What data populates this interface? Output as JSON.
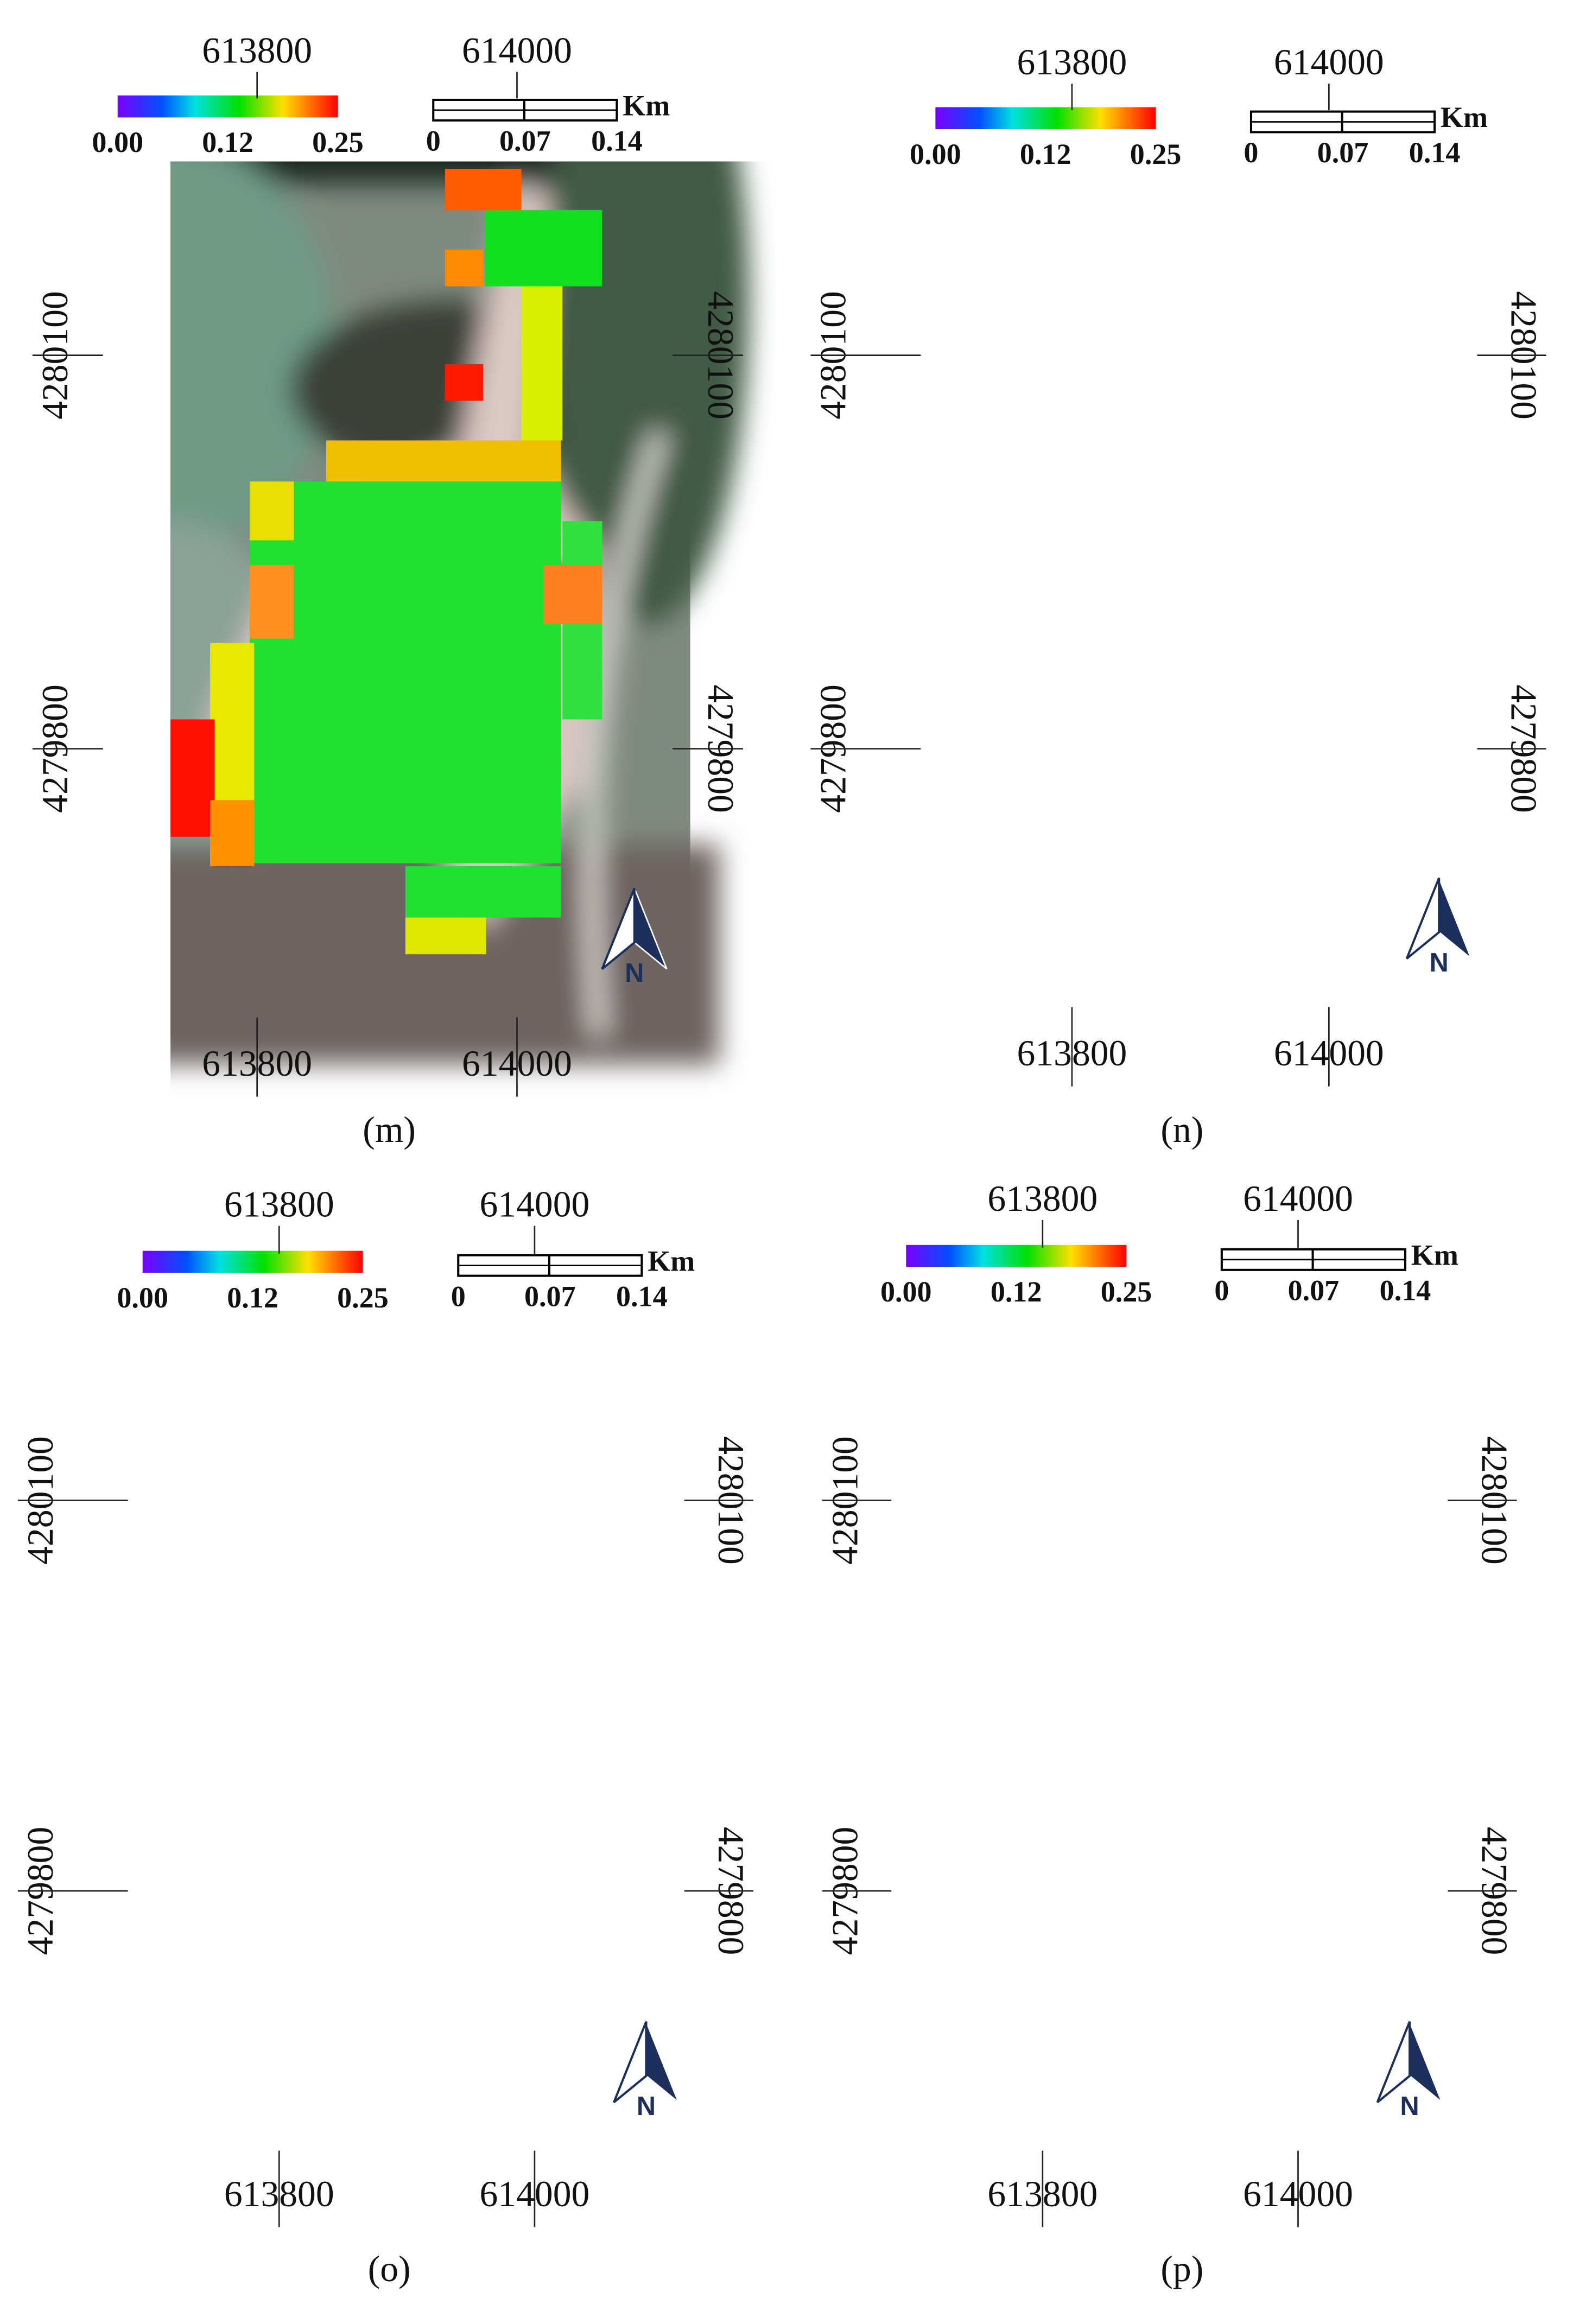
{
  "panels": [
    {
      "label": "(m)",
      "x_ticks": [
        613800,
        614000
      ],
      "y_ticks": [
        4280100,
        4279800
      ],
      "colorbar_labels": [
        "0.00",
        "0.12",
        "0.25"
      ],
      "scale_labels": [
        "0",
        "0.07",
        "0.14"
      ],
      "scale_unit": "Km",
      "north": "N"
    },
    {
      "label": "(n)",
      "x_ticks": [
        613800,
        614000
      ],
      "y_ticks": [
        4280100,
        4279800
      ],
      "colorbar_labels": [
        "0.00",
        "0.12",
        "0.25"
      ],
      "scale_labels": [
        "0",
        "0.07",
        "0.14"
      ],
      "scale_unit": "Km",
      "north": "N"
    },
    {
      "label": "(o)",
      "x_ticks": [
        613800,
        614000
      ],
      "y_ticks": [
        4280100,
        4279800
      ],
      "colorbar_labels": [
        "0.00",
        "0.12",
        "0.25"
      ],
      "scale_labels": [
        "0",
        "0.07",
        "0.14"
      ],
      "scale_unit": "Km",
      "north": "N"
    },
    {
      "label": "(p)",
      "x_ticks": [
        613800,
        614000
      ],
      "y_ticks": [
        4280100,
        4279800
      ],
      "colorbar_labels": [
        "0.00",
        "0.12",
        "0.25"
      ],
      "scale_labels": [
        "0",
        "0.07",
        "0.14"
      ],
      "scale_unit": "Km",
      "north": "N"
    }
  ]
}
